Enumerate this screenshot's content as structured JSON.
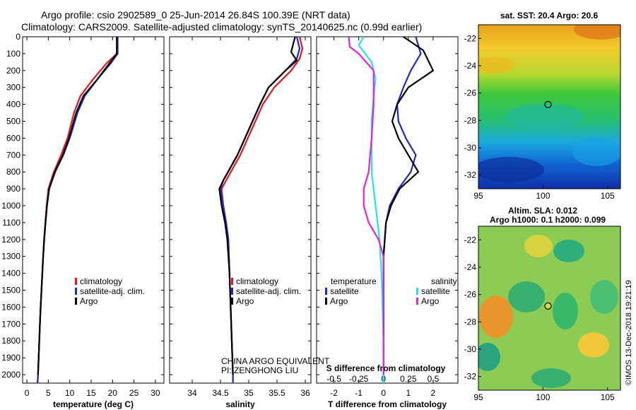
{
  "header": {
    "line1": "Argo profile: csio 2902589_0 25-Jun-2014 26.84S 100.39E (NRT data)",
    "line2": "Climatology: CARS2009. Satellite-adjusted climatology: synTS_20140625.nc (0.99d earlier)"
  },
  "colors": {
    "climatology": "#e8141c",
    "satellite_adj": "#1a2ad0",
    "argo": "#000000",
    "satellite_diff": "#22e6e6",
    "argo_salinity_diff": "#e61ee6"
  },
  "depth_axis": {
    "ticks": [
      0,
      100,
      200,
      300,
      400,
      500,
      600,
      700,
      800,
      900,
      1000,
      1100,
      1200,
      1300,
      1400,
      1500,
      1600,
      1700,
      1800,
      1900,
      2000
    ],
    "range": [
      0,
      2050
    ]
  },
  "chart_data": [
    {
      "type": "line",
      "xlabel": "temperature (deg C)",
      "xlim": [
        -1,
        32
      ],
      "xticks": [
        0,
        5,
        10,
        15,
        20,
        25,
        30
      ],
      "ylim": [
        0,
        2050
      ],
      "y_inverted": true,
      "legend": {
        "placement": "lower-middle",
        "entries": [
          "climatology",
          "satellite-adj. clim.",
          "Argo"
        ]
      },
      "series": [
        {
          "name": "climatology",
          "color": "#e8141c",
          "points": [
            [
              21,
              0
            ],
            [
              21,
              100
            ],
            [
              18.5,
              160
            ],
            [
              15.5,
              250
            ],
            [
              12.5,
              350
            ],
            [
              11,
              450
            ],
            [
              9.5,
              600
            ],
            [
              8,
              700
            ],
            [
              6.3,
              800
            ],
            [
              5,
              900
            ],
            [
              4.6,
              1000
            ],
            [
              4.3,
              1100
            ],
            [
              4,
              1200
            ],
            [
              3.8,
              1300
            ],
            [
              3.6,
              1400
            ],
            [
              3.4,
              1500
            ],
            [
              3.2,
              1600
            ],
            [
              3.05,
              1700
            ],
            [
              2.9,
              1800
            ],
            [
              2.75,
              1900
            ],
            [
              2.6,
              2000
            ],
            [
              2.5,
              2050
            ]
          ]
        },
        {
          "name": "satellite-adj. clim.",
          "color": "#1a2ad0",
          "points": [
            [
              21.2,
              0
            ],
            [
              21.2,
              100
            ],
            [
              19.5,
              160
            ],
            [
              16.5,
              250
            ],
            [
              13.5,
              350
            ],
            [
              11.8,
              450
            ],
            [
              10,
              600
            ],
            [
              8.5,
              700
            ],
            [
              6.6,
              800
            ],
            [
              5.2,
              900
            ],
            [
              4.7,
              1000
            ],
            [
              4.35,
              1100
            ],
            [
              4.05,
              1200
            ],
            [
              3.8,
              1300
            ],
            [
              3.6,
              1400
            ],
            [
              3.4,
              1500
            ],
            [
              3.2,
              1600
            ],
            [
              3.05,
              1700
            ],
            [
              2.9,
              1800
            ],
            [
              2.75,
              1900
            ],
            [
              2.6,
              2000
            ],
            [
              2.5,
              2050
            ]
          ]
        },
        {
          "name": "Argo",
          "color": "#000000",
          "points": [
            [
              21,
              0
            ],
            [
              21,
              100
            ],
            [
              19.2,
              160
            ],
            [
              16.5,
              250
            ],
            [
              13.2,
              350
            ],
            [
              11.5,
              450
            ],
            [
              9.8,
              600
            ],
            [
              8.4,
              700
            ],
            [
              6.5,
              800
            ],
            [
              5.2,
              900
            ],
            [
              4.7,
              1000
            ],
            [
              4.35,
              1100
            ],
            [
              4.05,
              1200
            ],
            [
              3.8,
              1300
            ],
            [
              3.6,
              1400
            ],
            [
              3.4,
              1500
            ],
            [
              3.2,
              1600
            ],
            [
              3.05,
              1700
            ],
            [
              2.9,
              1800
            ],
            [
              2.75,
              1900
            ],
            [
              2.6,
              2000
            ]
          ]
        }
      ]
    },
    {
      "type": "line",
      "xlabel": "salinity",
      "xlim": [
        33.6,
        36.1
      ],
      "xticks": [
        34,
        34.5,
        35,
        35.5,
        36
      ],
      "xtick_labels": [
        "34",
        "34.5",
        "35",
        "35.5",
        "36"
      ],
      "ylim": [
        0,
        2050
      ],
      "y_inverted": true,
      "legend": {
        "placement": "lower-middle",
        "entries": [
          "climatology",
          "satellite-adj. clim.",
          "Argo"
        ]
      },
      "series": [
        {
          "name": "climatology",
          "color": "#e8141c",
          "points": [
            [
              35.9,
              0
            ],
            [
              35.95,
              70
            ],
            [
              35.9,
              130
            ],
            [
              35.75,
              200
            ],
            [
              35.45,
              300
            ],
            [
              35.25,
              400
            ],
            [
              35.05,
              550
            ],
            [
              34.85,
              700
            ],
            [
              34.6,
              850
            ],
            [
              34.52,
              900
            ],
            [
              34.55,
              1000
            ],
            [
              34.6,
              1100
            ],
            [
              34.64,
              1200
            ],
            [
              34.66,
              1400
            ],
            [
              34.68,
              1600
            ],
            [
              34.7,
              1800
            ],
            [
              34.72,
              2000
            ],
            [
              34.72,
              2050
            ]
          ]
        },
        {
          "name": "satellite-adj. clim.",
          "color": "#1a2ad0",
          "points": [
            [
              35.85,
              0
            ],
            [
              35.9,
              70
            ],
            [
              35.85,
              130
            ],
            [
              35.65,
              200
            ],
            [
              35.35,
              300
            ],
            [
              35.2,
              400
            ],
            [
              35.0,
              550
            ],
            [
              34.8,
              700
            ],
            [
              34.55,
              850
            ],
            [
              34.5,
              900
            ],
            [
              34.55,
              1000
            ],
            [
              34.6,
              1100
            ],
            [
              34.64,
              1200
            ],
            [
              34.66,
              1400
            ],
            [
              34.68,
              1600
            ],
            [
              34.7,
              1800
            ],
            [
              34.72,
              2000
            ],
            [
              34.72,
              2050
            ]
          ]
        },
        {
          "name": "Argo",
          "color": "#000000",
          "points": [
            [
              35.82,
              0
            ],
            [
              35.75,
              90
            ],
            [
              35.85,
              140
            ],
            [
              35.65,
              200
            ],
            [
              35.35,
              300
            ],
            [
              35.2,
              400
            ],
            [
              35.0,
              550
            ],
            [
              34.8,
              700
            ],
            [
              34.55,
              850
            ],
            [
              34.48,
              900
            ],
            [
              34.52,
              1000
            ],
            [
              34.58,
              1100
            ],
            [
              34.62,
              1200
            ],
            [
              34.66,
              1400
            ],
            [
              34.68,
              1600
            ],
            [
              34.7,
              1800
            ],
            [
              34.72,
              2000
            ]
          ]
        }
      ]
    },
    {
      "type": "line",
      "xlabel": "T difference from climatology",
      "xlabel_top": "S difference from climatology",
      "xlim": [
        -2.7,
        3.0
      ],
      "xticks": [
        -2,
        -1,
        0,
        1,
        2
      ],
      "xtick_labels": [
        "-2",
        "-1",
        "0",
        "1",
        "2"
      ],
      "top_ticks": [
        -0.5,
        -0.25,
        0,
        0.25,
        0.5
      ],
      "top_tick_labels": [
        "-0.5",
        "-0.25",
        "0",
        "0.25",
        "0.5"
      ],
      "ylim": [
        0,
        2050
      ],
      "y_inverted": true,
      "legend": {
        "placement": "lower",
        "groups": [
          {
            "title": "temperature",
            "entries": [
              "satellite",
              "Argo"
            ]
          },
          {
            "title": "salinity",
            "entries": [
              "satellite",
              "Argo"
            ]
          }
        ]
      },
      "series": [
        {
          "name": "temperature satellite",
          "color": "#1a2ad0",
          "points": [
            [
              1.3,
              0
            ],
            [
              1.5,
              100
            ],
            [
              1.1,
              200
            ],
            [
              0.8,
              300
            ],
            [
              0.55,
              400
            ],
            [
              0.6,
              500
            ],
            [
              0.9,
              600
            ],
            [
              1.3,
              700
            ],
            [
              1.1,
              800
            ],
            [
              0.6,
              900
            ],
            [
              0.25,
              1000
            ],
            [
              0.1,
              1100
            ],
            [
              0.05,
              1200
            ],
            [
              0,
              1300
            ],
            [
              0,
              1400
            ],
            [
              0,
              1500
            ],
            [
              0,
              1600
            ],
            [
              0,
              1700
            ],
            [
              0,
              1800
            ],
            [
              0,
              1900
            ],
            [
              0,
              2000
            ],
            [
              0,
              2050
            ]
          ]
        },
        {
          "name": "temperature Argo",
          "color": "#000000",
          "points": [
            [
              0.8,
              0
            ],
            [
              1.6,
              80
            ],
            [
              2.0,
              200
            ],
            [
              1.0,
              300
            ],
            [
              0.55,
              400
            ],
            [
              0.35,
              500
            ],
            [
              0.6,
              600
            ],
            [
              1.0,
              700
            ],
            [
              1.4,
              800
            ],
            [
              0.65,
              900
            ],
            [
              0.3,
              1000
            ],
            [
              0.1,
              1100
            ],
            [
              0.05,
              1200
            ],
            [
              0,
              1300
            ],
            [
              0,
              1400
            ],
            [
              0,
              1500
            ],
            [
              0,
              1600
            ],
            [
              0,
              1700
            ],
            [
              0,
              1800
            ],
            [
              0,
              1900
            ],
            [
              0,
              2000
            ]
          ]
        },
        {
          "name": "salinity satellite",
          "color": "#22e6e6",
          "points": [
            [
              -0.2,
              0
            ],
            [
              -0.25,
              50
            ],
            [
              -0.12,
              150
            ],
            [
              -0.08,
              250
            ],
            [
              -0.1,
              350
            ],
            [
              -0.12,
              500
            ],
            [
              -0.12,
              650
            ],
            [
              -0.12,
              800
            ],
            [
              -0.1,
              900
            ],
            [
              -0.08,
              1000
            ],
            [
              -0.04,
              1200
            ],
            [
              -0.02,
              1400
            ],
            [
              -0.01,
              1600
            ],
            [
              0,
              1800
            ],
            [
              0,
              2050
            ]
          ]
        },
        {
          "name": "salinity Argo",
          "color": "#e61ee6",
          "points": [
            [
              -0.35,
              0
            ],
            [
              -0.34,
              60
            ],
            [
              -0.25,
              100
            ],
            [
              -0.1,
              200
            ],
            [
              -0.1,
              400
            ],
            [
              -0.12,
              600
            ],
            [
              -0.15,
              800
            ],
            [
              -0.2,
              900
            ],
            [
              -0.2,
              1000
            ],
            [
              -0.15,
              1100
            ],
            [
              -0.05,
              1200
            ],
            [
              0,
              1300
            ],
            [
              0,
              1500
            ],
            [
              0,
              1800
            ],
            [
              0,
              2000
            ]
          ]
        }
      ]
    }
  ],
  "legends": {
    "profile": [
      "climatology",
      "satellite-adj. clim.",
      "Argo"
    ],
    "diff_temperature_title": "temperature",
    "diff_salinity_title": "salinity",
    "diff_entries": [
      "satellite",
      "Argo"
    ]
  },
  "credit": {
    "line1": "CHINA ARGO EQUIVALENT",
    "line2": "PI: ZENGHONG LIU"
  },
  "maps": {
    "sst": {
      "title": "sat. SST: 20.4 Argo: 20.6",
      "x_ticks": [
        95,
        100,
        105
      ],
      "y_ticks": [
        -22,
        -24,
        -26,
        -28,
        -30,
        -32
      ],
      "xlim": [
        95,
        106
      ],
      "ylim": [
        -33,
        -21
      ],
      "marker": [
        100.39,
        -26.84
      ]
    },
    "sla": {
      "title1": "Altim. SLA: 0.012",
      "title2": "Argo h1000: 0.1 h2000: 0.099",
      "x_ticks": [
        95,
        100,
        105
      ],
      "y_ticks": [
        -22,
        -24,
        -26,
        -28,
        -30,
        -32
      ],
      "xlim": [
        95,
        106
      ],
      "ylim": [
        -33,
        -21
      ],
      "marker": [
        100.39,
        -26.84
      ]
    }
  },
  "timestamp": "©IMOS 13-Dec-2018 19:21:19"
}
